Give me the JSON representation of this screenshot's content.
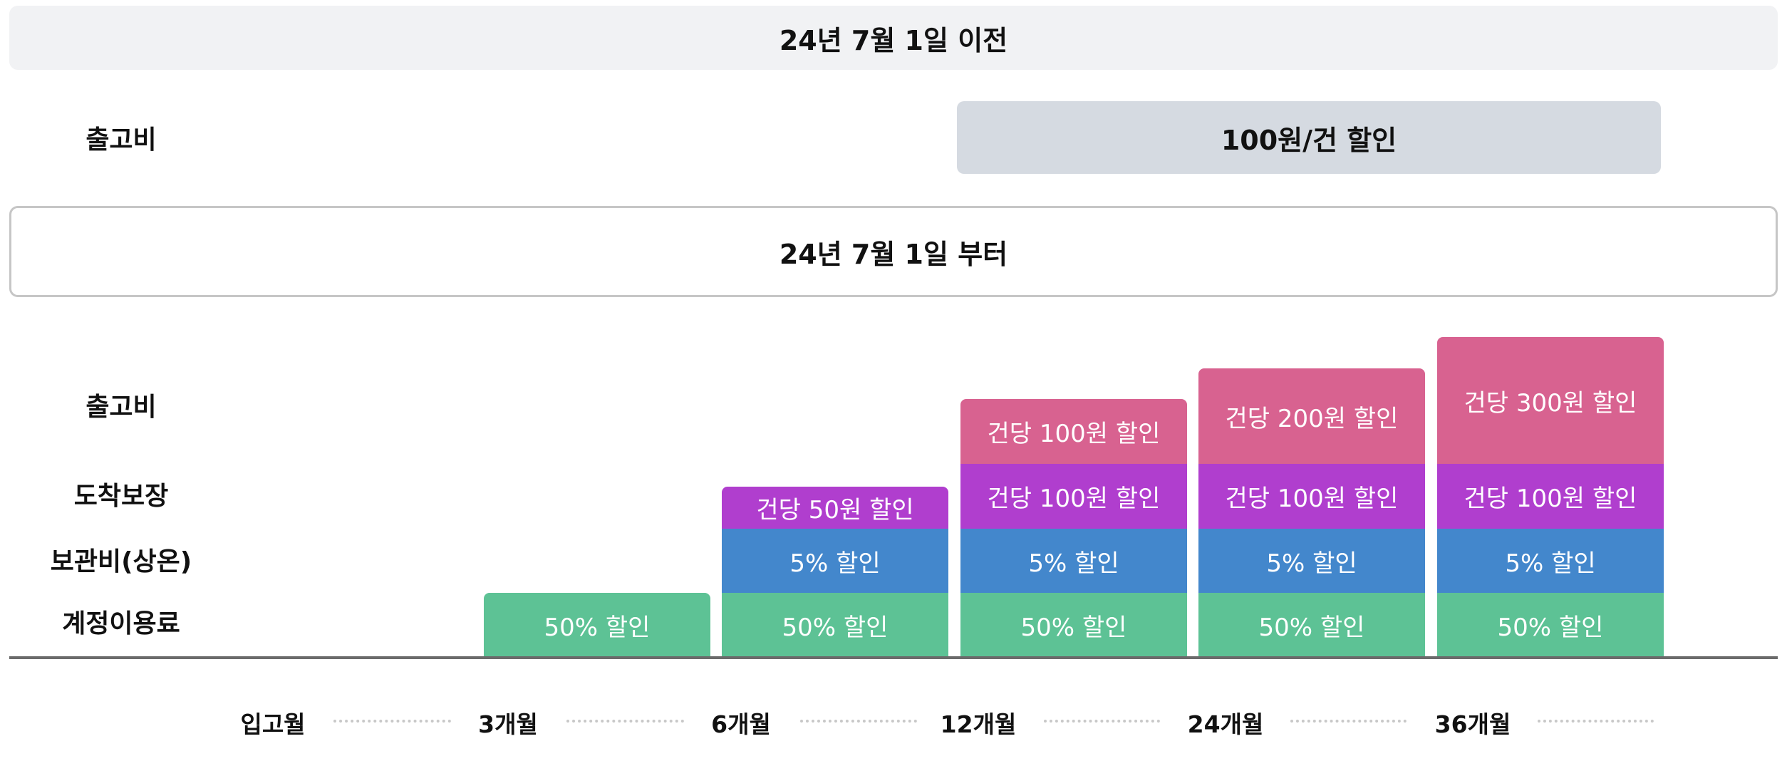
{
  "before": {
    "banner": "24년 7월 1일 이전",
    "row_label": "출고비",
    "bar_text": "100원/건 할인"
  },
  "after": {
    "banner": "24년 7월 1일 부터",
    "row_labels": [
      "출고비",
      "도착보장",
      "보관비(상온)",
      "계정이용료"
    ]
  },
  "colors": {
    "account": "#5dc295",
    "storage": "#4387cc",
    "delivery": "#b03ece",
    "shipping": "#d86290",
    "old_bar": "#d5dae1"
  },
  "columns": [
    {
      "period": "3개월",
      "account": "50% 할인",
      "storage": null,
      "delivery": null,
      "shipping": null
    },
    {
      "period": "6개월",
      "account": "50% 할인",
      "storage": "5% 할인",
      "delivery": "건당 50원 할인",
      "shipping": null
    },
    {
      "period": "12개월",
      "account": "50% 할인",
      "storage": "5% 할인",
      "delivery": "건당 100원 할인",
      "shipping": "건당 100원 할인"
    },
    {
      "period": "24개월",
      "account": "50% 할인",
      "storage": "5% 할인",
      "delivery": "건당 100원 할인",
      "shipping": "건당 200원 할인"
    },
    {
      "period": "36개월",
      "account": "50% 할인",
      "storage": "5% 할인",
      "delivery": "건당 100원 할인",
      "shipping": "건당 300원 할인"
    }
  ],
  "axis": [
    "입고월",
    "3개월",
    "6개월",
    "12개월",
    "24개월",
    "36개월"
  ]
}
